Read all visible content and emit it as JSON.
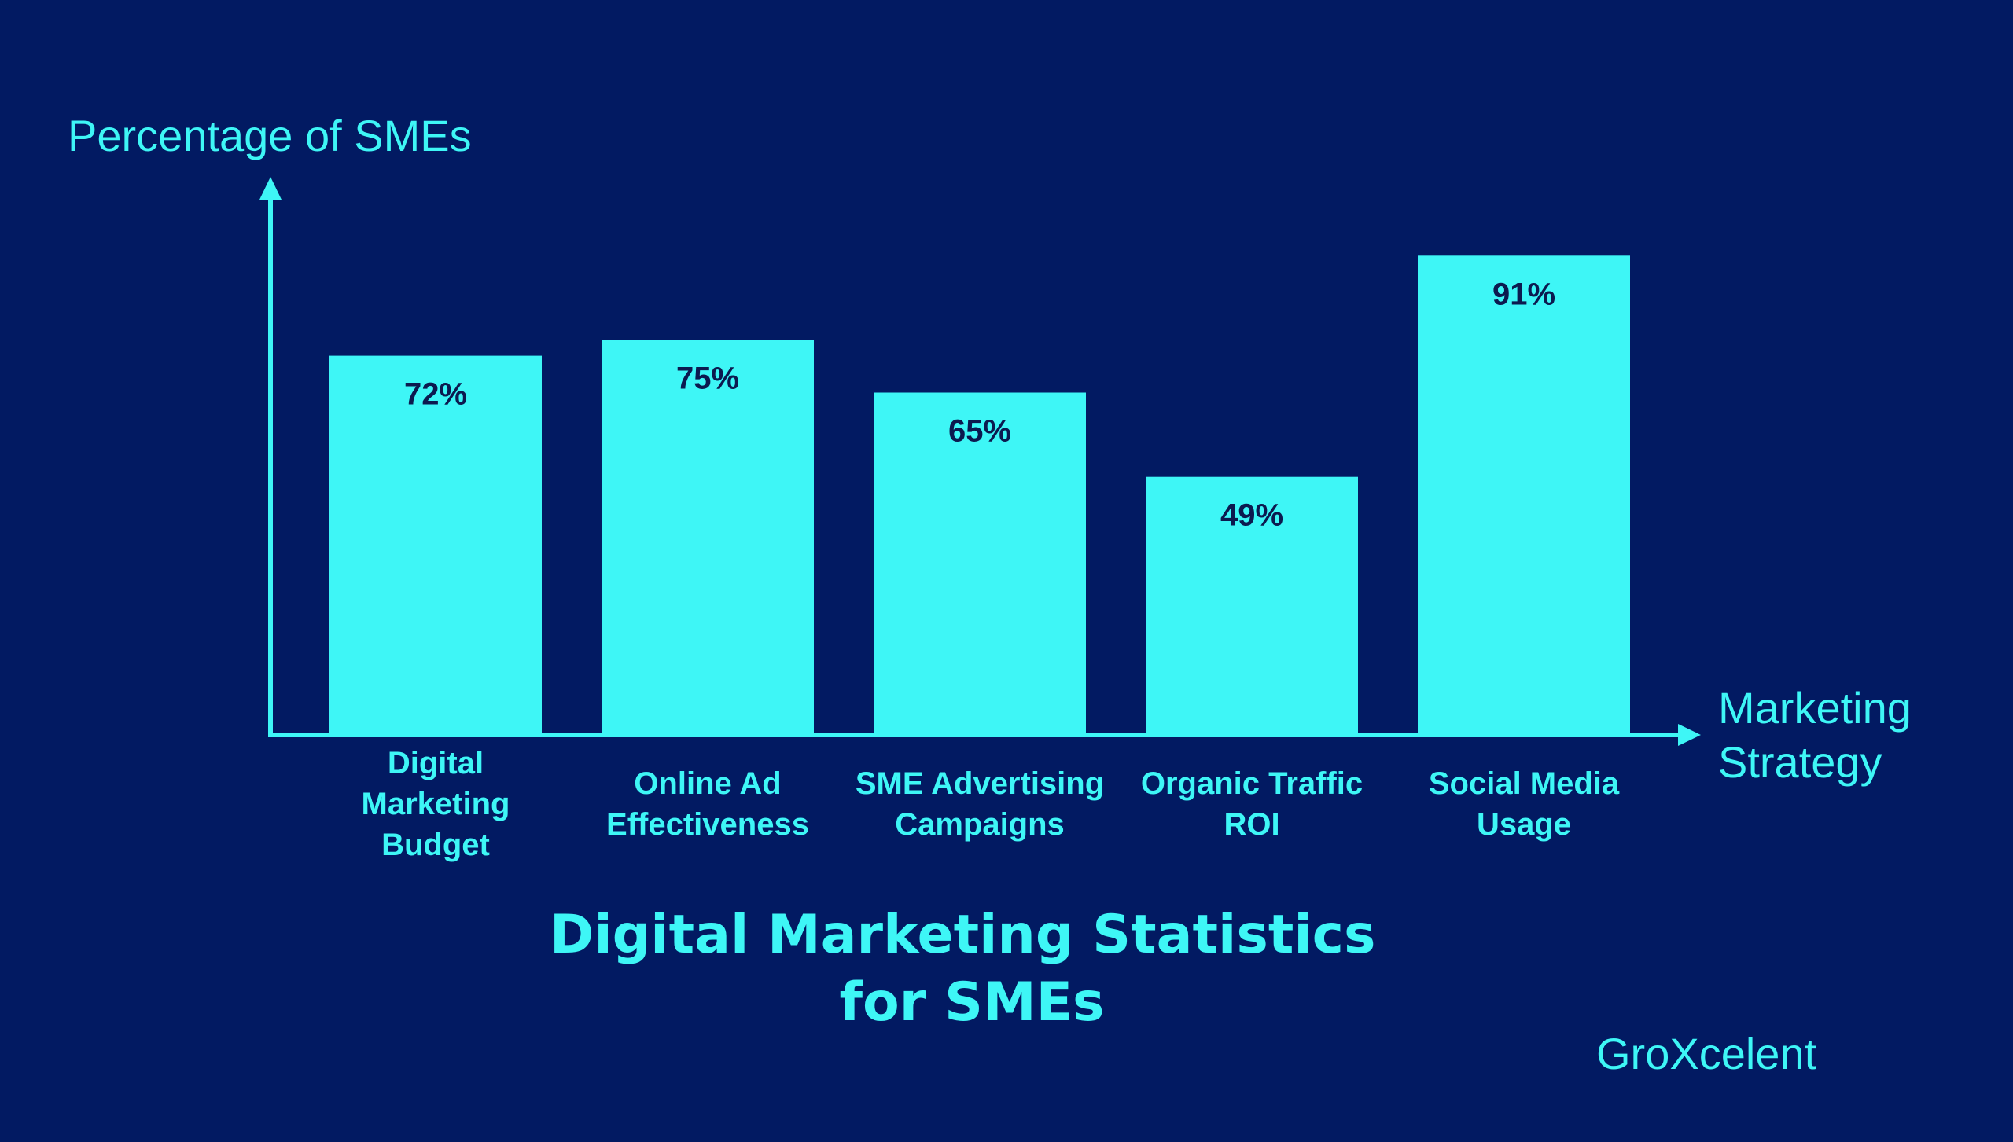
{
  "chart_data": {
    "type": "bar",
    "title_lines": [
      "Digital Marketing Statistics",
      "for SMEs"
    ],
    "ylabel": "Percentage of SMEs",
    "xlabel_lines": [
      "Marketing",
      "Strategy"
    ],
    "categories": [
      [
        "Digital",
        "Marketing",
        "Budget"
      ],
      [
        "Online Ad",
        "Effectiveness"
      ],
      [
        "SME Advertising",
        "Campaigns"
      ],
      [
        "Organic Traffic",
        "ROI"
      ],
      [
        "Social Media",
        "Usage"
      ]
    ],
    "values": [
      72,
      75,
      65,
      49,
      91
    ],
    "value_labels": [
      "72%",
      "75%",
      "65%",
      "49%",
      "91%"
    ],
    "ylim": [
      0,
      100
    ],
    "grid": false,
    "bar_color": "#3ef6f6",
    "background_color": "#021a62",
    "data_label_color": "#0c1a4f"
  },
  "brand": "GroXcelent"
}
